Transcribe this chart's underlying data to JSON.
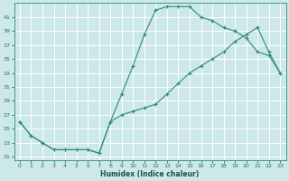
{
  "xlabel": "Humidex (Indice chaleur)",
  "bg_color": "#cce8e8",
  "grid_color": "#ffffff",
  "line_color": "#2e8b7a",
  "xlim": [
    -0.5,
    23.5
  ],
  "ylim": [
    20.5,
    43
  ],
  "xticks": [
    0,
    1,
    2,
    3,
    4,
    5,
    6,
    7,
    8,
    9,
    10,
    11,
    12,
    13,
    14,
    15,
    16,
    17,
    18,
    19,
    20,
    21,
    22,
    23
  ],
  "yticks": [
    21,
    23,
    25,
    27,
    29,
    31,
    33,
    35,
    37,
    39,
    41
  ],
  "curve_upper_x": [
    0,
    1,
    2,
    3,
    4,
    5,
    6,
    7,
    8,
    9,
    10,
    11,
    12,
    13,
    14,
    15,
    16,
    17,
    18,
    19
  ],
  "curve_upper_y": [
    26,
    24,
    23,
    22,
    22,
    22,
    22,
    21.5,
    26,
    30,
    34,
    38.5,
    42,
    42.5,
    42.5,
    42.5,
    41,
    40.5,
    39.5,
    39
  ],
  "curve_right_x": [
    19,
    20,
    21,
    22,
    23
  ],
  "curve_right_y": [
    39,
    38,
    36,
    35.5,
    33
  ],
  "curve_diag_x": [
    0,
    1,
    2,
    3,
    4,
    5,
    6,
    7,
    8,
    9,
    10,
    11,
    12,
    13,
    14,
    15,
    16,
    17,
    18,
    19,
    20,
    21,
    22,
    23
  ],
  "curve_diag_y": [
    26,
    24,
    23,
    22,
    22,
    22,
    22,
    21.5,
    26,
    27,
    27.5,
    28,
    28.5,
    30,
    31.5,
    33,
    34,
    35,
    36,
    37.5,
    38.5,
    39.5,
    36,
    33
  ]
}
